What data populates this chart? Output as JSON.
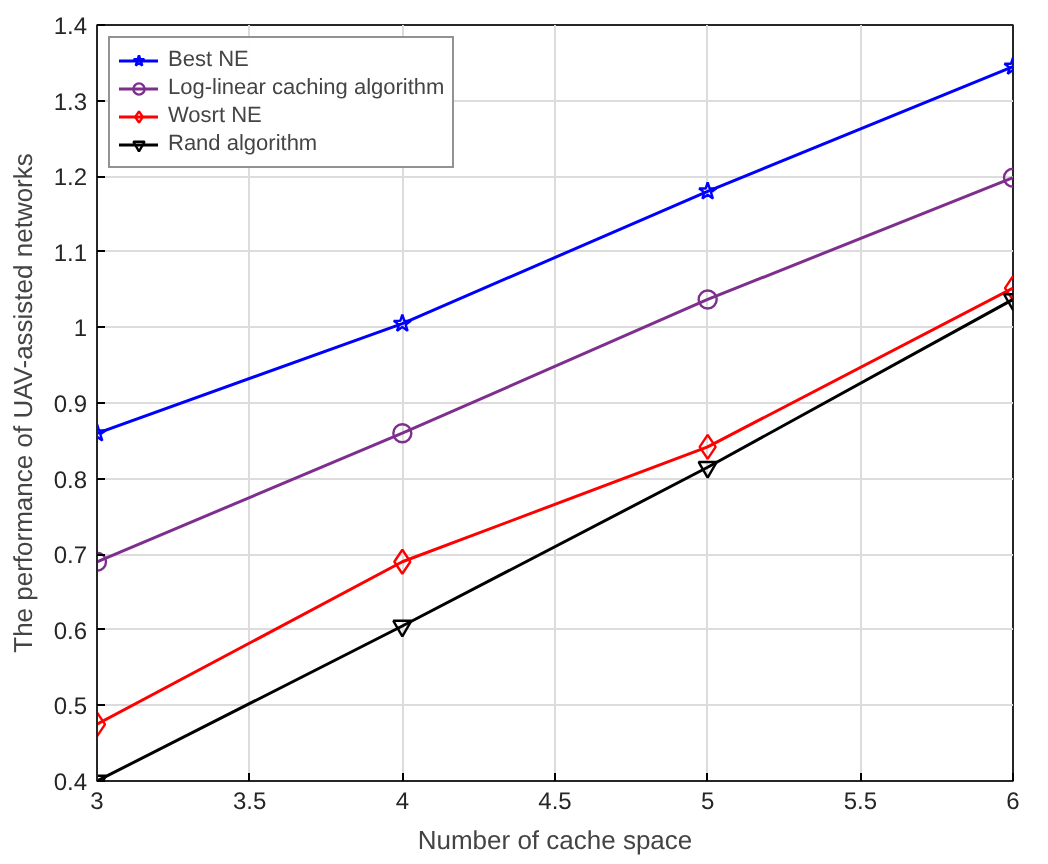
{
  "chart_data": {
    "type": "line",
    "xlabel": "Number of cache space",
    "ylabel": "The performance of UAV-assisted networks",
    "x": [
      3,
      4,
      5,
      6
    ],
    "series": [
      {
        "name": "Best NE",
        "color": "#0000ff",
        "marker": "star",
        "values": [
          0.86,
          1.005,
          1.18,
          1.345
        ]
      },
      {
        "name": "Log-linear caching algorithm",
        "color": "#7e2f8e",
        "marker": "circle",
        "values": [
          0.69,
          0.86,
          1.037,
          1.198
        ]
      },
      {
        "name": "Wosrt NE",
        "color": "#ff0000",
        "marker": "diamond",
        "values": [
          0.475,
          0.69,
          0.842,
          1.052
        ]
      },
      {
        "name": "Rand algorithm",
        "color": "#000000",
        "marker": "triangle_down",
        "values": [
          0.4,
          0.605,
          0.815,
          1.037
        ]
      }
    ],
    "xlim": [
      3,
      6
    ],
    "ylim": [
      0.4,
      1.4
    ],
    "xticks": [
      3,
      3.5,
      4,
      4.5,
      5,
      5.5,
      6
    ],
    "yticks": [
      0.4,
      0.5,
      0.6,
      0.7,
      0.8,
      0.9,
      1,
      1.1,
      1.2,
      1.3,
      1.4
    ],
    "grid": true,
    "legend": "top left",
    "line_style": "solid"
  }
}
